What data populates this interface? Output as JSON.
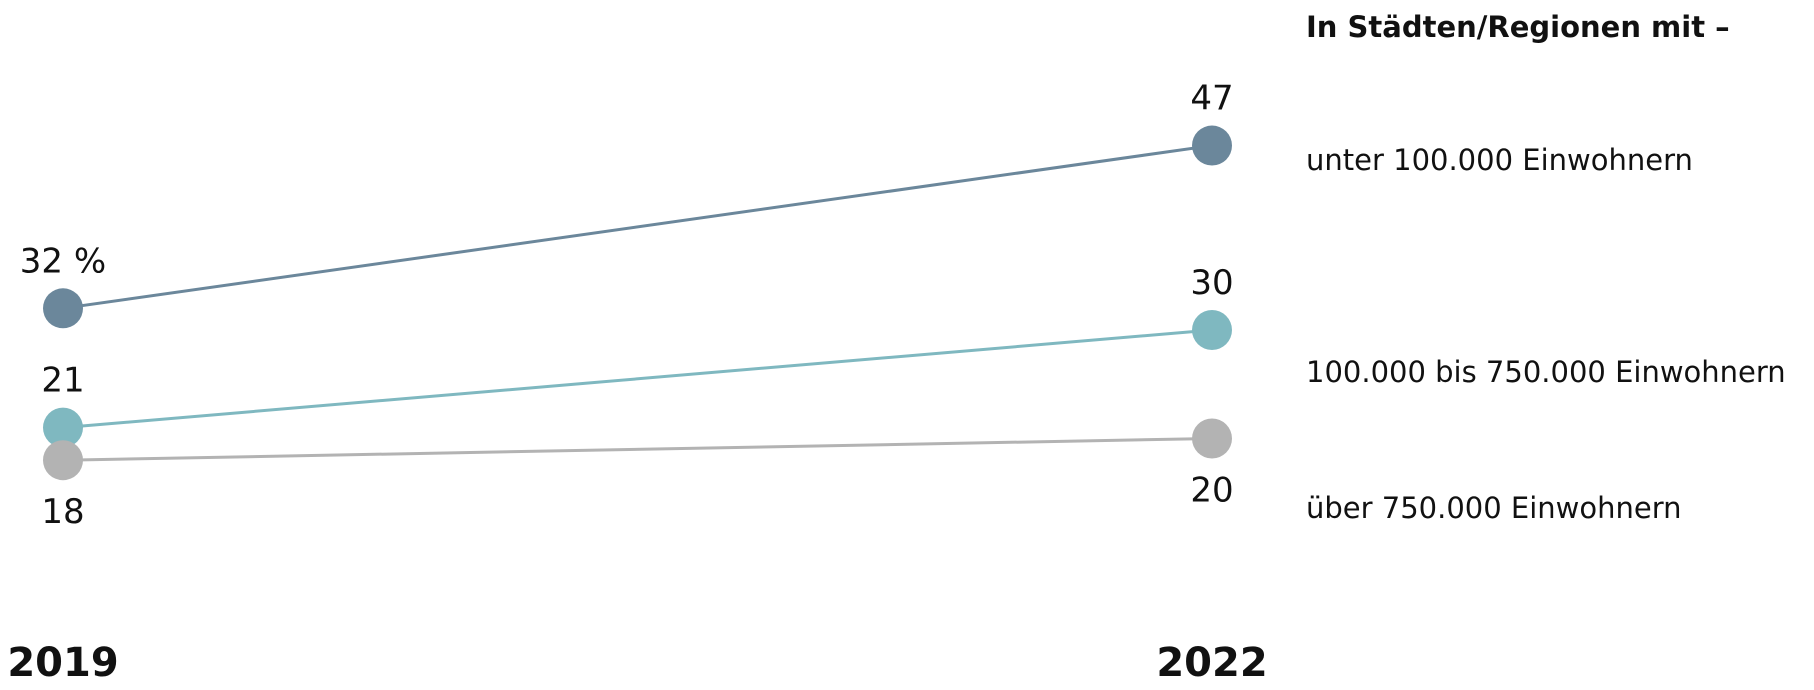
{
  "chart_data": {
    "type": "line",
    "x": [
      "2019",
      "2022"
    ],
    "legend_title": "In Städten/Regionen mit –",
    "legend_position": "right",
    "grid": false,
    "ylim": [
      15,
      50
    ],
    "series": [
      {
        "name": "unter 100.000 Einwohnern",
        "values": [
          32,
          47
        ],
        "labels": [
          "32 %",
          "47"
        ],
        "color": "#6b879b"
      },
      {
        "name": "100.000 bis 750.000 Einwohnern",
        "values": [
          21,
          30
        ],
        "labels": [
          "21",
          "30"
        ],
        "color": "#7fb8c0"
      },
      {
        "name": "über 750.000 Einwohnern",
        "values": [
          18,
          20
        ],
        "labels": [
          "18",
          "20"
        ],
        "color": "#b3b3b3"
      }
    ]
  }
}
